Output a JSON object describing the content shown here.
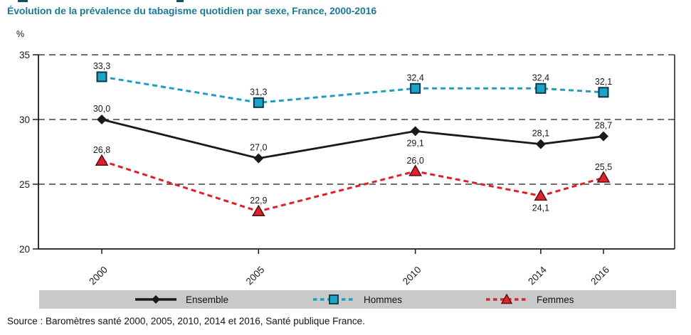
{
  "title": "Évolution de la prévalence du tabagisme quotidien par sexe, France, 2000-2016",
  "y_unit": "%",
  "source": "Source : Baromètres santé 2000, 2005, 2010, 2014 et 2016, Santé publique France.",
  "colors": {
    "title": "#1a7a95",
    "text": "#1a1a1a",
    "axis": "#1a1a1a",
    "legend_bg": "#c9c9c9"
  },
  "chart_data": {
    "type": "line",
    "title": "Évolution de la prévalence du tabagisme quotidien par sexe, France, 2000-2016",
    "xlabel": "",
    "ylabel": "%",
    "categories": [
      "2000",
      "2005",
      "2010",
      "2014",
      "2016"
    ],
    "x_numeric": [
      2000,
      2005,
      2010,
      2014,
      2016
    ],
    "ylim": [
      20,
      35
    ],
    "yticks": [
      20,
      25,
      30,
      35
    ],
    "grid": "horizontal dashed lines at 25, 30, 35",
    "legend_position": "bottom",
    "series": [
      {
        "name": "Ensemble",
        "marker": "diamond",
        "line_style": "solid",
        "color": "#1a1a1a",
        "marker_fill": "#1a1a1a",
        "marker_stroke": "#1a1a1a",
        "values": [
          30.0,
          27.0,
          29.1,
          28.1,
          28.7
        ],
        "labels": [
          "30,0",
          "27,0",
          "29,1",
          "28,1",
          "28,7"
        ],
        "label_positions": [
          "above",
          "above",
          "below",
          "above",
          "above"
        ]
      },
      {
        "name": "Hommes",
        "marker": "square",
        "line_style": "dashed",
        "color": "#1d9fc2",
        "marker_fill": "#1da3c6",
        "marker_stroke": "#0a3644",
        "values": [
          33.3,
          31.3,
          32.4,
          32.4,
          32.1
        ],
        "labels": [
          "33,3",
          "31,3",
          "32,4",
          "32,4",
          "32,1"
        ],
        "label_positions": [
          "above",
          "above",
          "above",
          "above",
          "above"
        ]
      },
      {
        "name": "Femmes",
        "marker": "triangle",
        "line_style": "dashed",
        "color": "#de1f26",
        "marker_fill": "#de242b",
        "marker_stroke": "#5a1115",
        "values": [
          26.8,
          22.9,
          26.0,
          24.1,
          25.5
        ],
        "labels": [
          "26,8",
          "22,9",
          "26,0",
          "24,1",
          "25,5"
        ],
        "label_positions": [
          "above",
          "above",
          "above",
          "below",
          "above"
        ]
      }
    ]
  },
  "legend": {
    "items": [
      {
        "label": "Ensemble"
      },
      {
        "label": "Hommes"
      },
      {
        "label": "Femmes"
      }
    ]
  }
}
